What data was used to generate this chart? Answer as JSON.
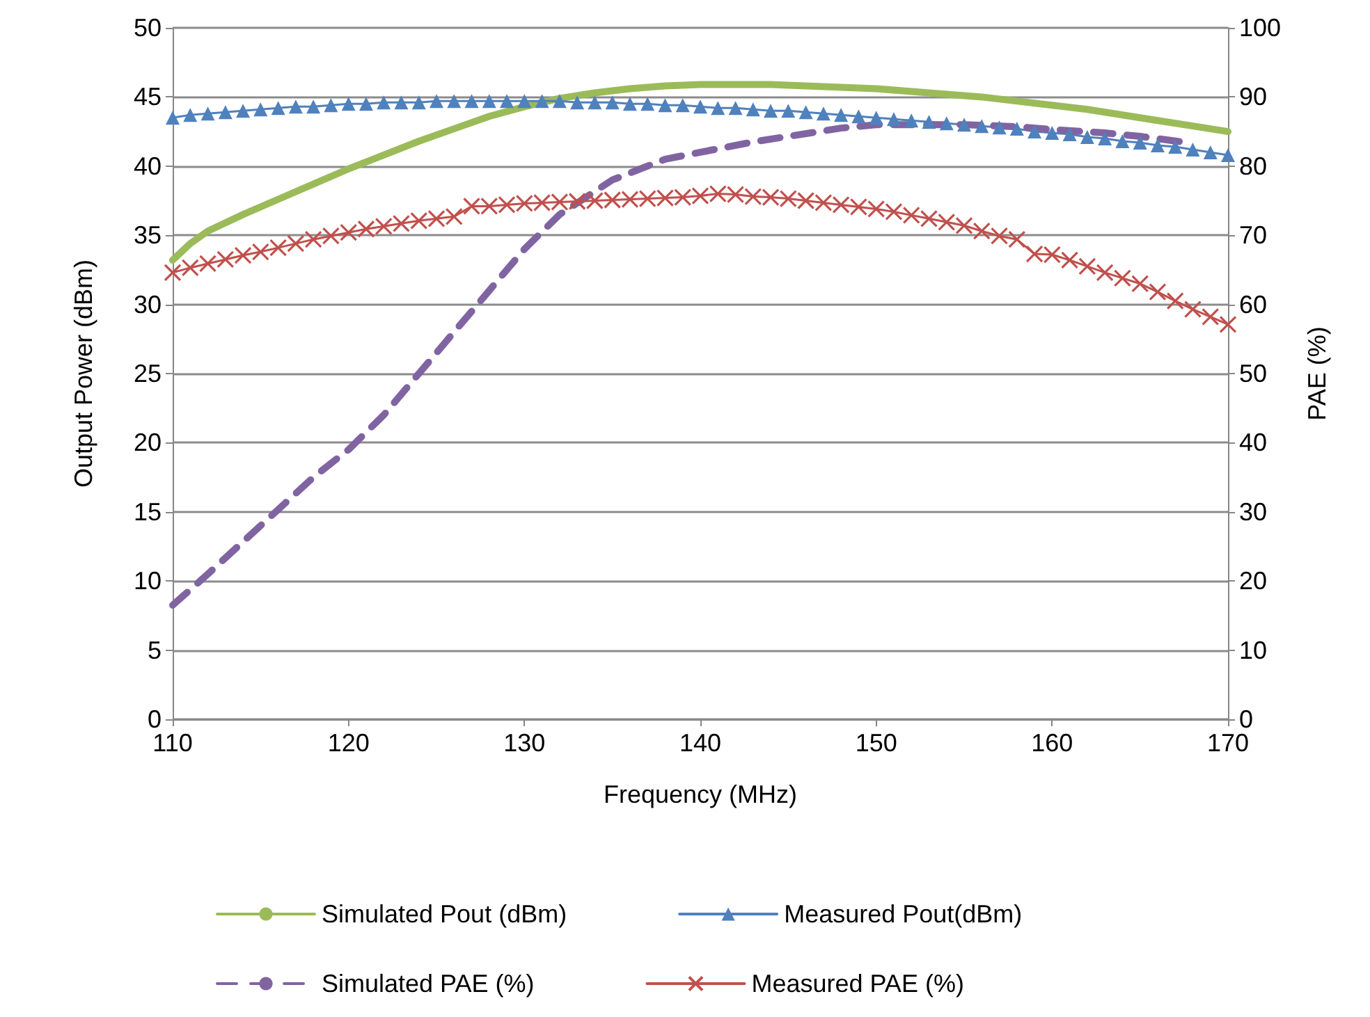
{
  "chart_data": {
    "type": "line",
    "xlabel": "Frequency (MHz)",
    "ylabel": "Output Power (dBm)",
    "y2label": "PAE (%)",
    "xlim": [
      110,
      170
    ],
    "xticks": [
      110,
      120,
      130,
      140,
      150,
      160,
      170
    ],
    "ylim": [
      0,
      50
    ],
    "yticks": [
      0,
      5,
      10,
      15,
      20,
      25,
      30,
      35,
      40,
      45,
      50
    ],
    "y2lim": [
      0,
      100
    ],
    "y2ticks": [
      0,
      10,
      20,
      30,
      40,
      50,
      60,
      70,
      80,
      90,
      100
    ],
    "grid": "y",
    "legend": "bottom",
    "series": [
      {
        "name": "Simulated Pout (dBm)",
        "color": "#9bbb59",
        "marker": "none",
        "line_style": "solid",
        "x": [
          110,
          111,
          112,
          114,
          116,
          118,
          120,
          122,
          124,
          126,
          128,
          130,
          132,
          134,
          136,
          138,
          140,
          142,
          144,
          146,
          148,
          150,
          152,
          154,
          156,
          158,
          160,
          162,
          164,
          166,
          168,
          170
        ],
        "values": [
          33.2,
          34.4,
          35.3,
          36.5,
          37.6,
          38.7,
          39.8,
          40.8,
          41.8,
          42.7,
          43.6,
          44.3,
          44.9,
          45.3,
          45.6,
          45.8,
          45.9,
          45.9,
          45.9,
          45.8,
          45.7,
          45.6,
          45.4,
          45.2,
          45.0,
          44.7,
          44.4,
          44.1,
          43.7,
          43.3,
          42.9,
          42.5
        ]
      },
      {
        "name": "Measured Pout(dBm)",
        "color": "#4f81bd",
        "marker": "triangle",
        "line_style": "solid",
        "x": [
          110,
          111,
          112,
          113,
          114,
          115,
          116,
          117,
          118,
          119,
          120,
          121,
          122,
          123,
          124,
          125,
          126,
          127,
          128,
          129,
          130,
          131,
          132,
          133,
          134,
          135,
          136,
          137,
          138,
          139,
          140,
          141,
          142,
          143,
          144,
          145,
          146,
          147,
          148,
          149,
          150,
          151,
          152,
          153,
          154,
          155,
          156,
          157,
          158,
          159,
          160,
          161,
          162,
          163,
          164,
          165,
          166,
          167,
          168,
          169,
          170
        ],
        "values": [
          43.5,
          43.7,
          43.8,
          43.9,
          44.0,
          44.1,
          44.2,
          44.3,
          44.3,
          44.4,
          44.5,
          44.5,
          44.6,
          44.6,
          44.6,
          44.7,
          44.7,
          44.7,
          44.7,
          44.7,
          44.7,
          44.7,
          44.7,
          44.6,
          44.6,
          44.6,
          44.5,
          44.5,
          44.4,
          44.4,
          44.3,
          44.2,
          44.2,
          44.1,
          44.0,
          44.0,
          43.9,
          43.8,
          43.7,
          43.6,
          43.5,
          43.4,
          43.3,
          43.2,
          43.1,
          43.0,
          42.9,
          42.8,
          42.7,
          42.5,
          42.4,
          42.3,
          42.1,
          42.0,
          41.8,
          41.7,
          41.5,
          41.4,
          41.2,
          41.0,
          40.8
        ]
      },
      {
        "name": "Simulated PAE (%)",
        "color": "#8064a2",
        "marker": "none",
        "line_style": "dashed",
        "axis": "y2",
        "x": [
          110,
          112,
          115,
          118,
          120,
          122,
          125,
          128,
          130,
          132,
          135,
          138,
          140,
          143,
          145,
          148,
          150,
          153,
          155,
          158,
          160,
          163,
          165,
          168
        ],
        "values": [
          16.5,
          21,
          28,
          35,
          39,
          44,
          53,
          62,
          68,
          73,
          78,
          81,
          82,
          83.5,
          84.3,
          85.5,
          86,
          86,
          86,
          85.7,
          85.3,
          84.8,
          84.3,
          83.3
        ]
      },
      {
        "name": "Measured PAE (%)",
        "color": "#c0504d",
        "marker": "cross",
        "line_style": "solid",
        "axis": "y2",
        "x": [
          110,
          111,
          112,
          113,
          114,
          115,
          116,
          117,
          118,
          119,
          120,
          121,
          122,
          123,
          124,
          125,
          126,
          127,
          128,
          129,
          130,
          131,
          132,
          133,
          134,
          135,
          136,
          137,
          138,
          139,
          140,
          141,
          142,
          143,
          144,
          145,
          146,
          147,
          148,
          149,
          150,
          151,
          152,
          153,
          154,
          155,
          156,
          157,
          158,
          159,
          160,
          161,
          162,
          163,
          164,
          165,
          166,
          167,
          168,
          169,
          170
        ],
        "values": [
          64.6,
          65.3,
          65.9,
          66.5,
          67.1,
          67.6,
          68.2,
          68.8,
          69.4,
          69.9,
          70.4,
          70.9,
          71.3,
          71.7,
          72.1,
          72.4,
          72.7,
          74.2,
          74.2,
          74.4,
          74.6,
          74.7,
          74.8,
          74.9,
          75.0,
          75.1,
          75.2,
          75.3,
          75.4,
          75.5,
          75.7,
          76.0,
          75.9,
          75.6,
          75.5,
          75.3,
          75.0,
          74.7,
          74.4,
          74.1,
          73.8,
          73.4,
          72.9,
          72.4,
          71.9,
          71.4,
          70.6,
          69.9,
          69.4,
          67.3,
          67.2,
          66.4,
          65.5,
          64.6,
          63.8,
          63.0,
          61.8,
          60.5,
          59.3,
          58.2,
          57.1
        ]
      }
    ]
  }
}
